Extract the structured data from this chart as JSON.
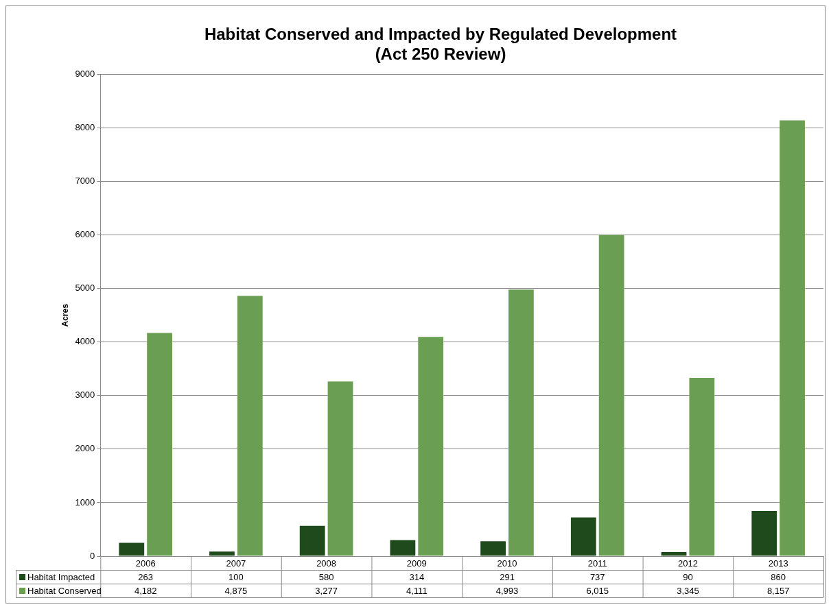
{
  "chart_data": {
    "type": "bar",
    "title": "Habitat Conserved and Impacted by Regulated Development\n(Act 250 Review)",
    "ylabel": "Acres",
    "categories": [
      "2006",
      "2007",
      "2008",
      "2009",
      "2010",
      "2011",
      "2012",
      "2013"
    ],
    "series": [
      {
        "name": "Habitat Impacted",
        "color": "#1f4a1c",
        "values": [
          263,
          100,
          580,
          314,
          291,
          737,
          90,
          860
        ],
        "value_labels": [
          "263",
          "100",
          "580",
          "314",
          "291",
          "737",
          "90",
          "860"
        ]
      },
      {
        "name": "Habitat Conserved",
        "color": "#6a9e52",
        "values": [
          4182,
          4875,
          3277,
          4111,
          4993,
          6015,
          3345,
          8157
        ],
        "value_labels": [
          "4,182",
          "4,875",
          "3,277",
          "4,111",
          "4,993",
          "6,015",
          "3,345",
          "8,157"
        ]
      }
    ],
    "ylim": [
      0,
      9000
    ],
    "yticks": [
      0,
      1000,
      2000,
      3000,
      4000,
      5000,
      6000,
      7000,
      8000,
      9000
    ],
    "grid": "y",
    "legend": "bottom"
  }
}
